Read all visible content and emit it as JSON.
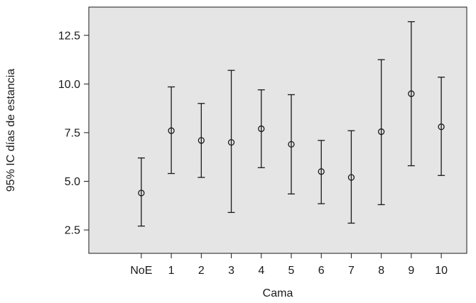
{
  "chart_data": {
    "type": "errorbar",
    "xlabel": "Cama",
    "ylabel": "95% IC días de estancia",
    "categories": [
      "NoE",
      "1",
      "2",
      "3",
      "4",
      "5",
      "6",
      "7",
      "8",
      "9",
      "10"
    ],
    "means": [
      4.4,
      7.6,
      7.1,
      7.0,
      7.7,
      6.9,
      5.5,
      5.2,
      7.55,
      9.5,
      7.8
    ],
    "lower": [
      2.7,
      5.4,
      5.2,
      3.4,
      5.7,
      4.35,
      3.85,
      2.85,
      3.8,
      5.8,
      5.3
    ],
    "upper": [
      6.2,
      9.85,
      9.0,
      10.7,
      9.7,
      9.45,
      7.1,
      7.6,
      11.25,
      13.2,
      10.35
    ],
    "yticks": [
      "2.5",
      "5.0",
      "7.5",
      "10.0",
      "12.5"
    ],
    "ylim": [
      1.3,
      13.95
    ],
    "colors": {
      "plot_background": "#e5e5e5",
      "frame": "#1a1a1a",
      "marker": "#1a1a1a"
    }
  }
}
